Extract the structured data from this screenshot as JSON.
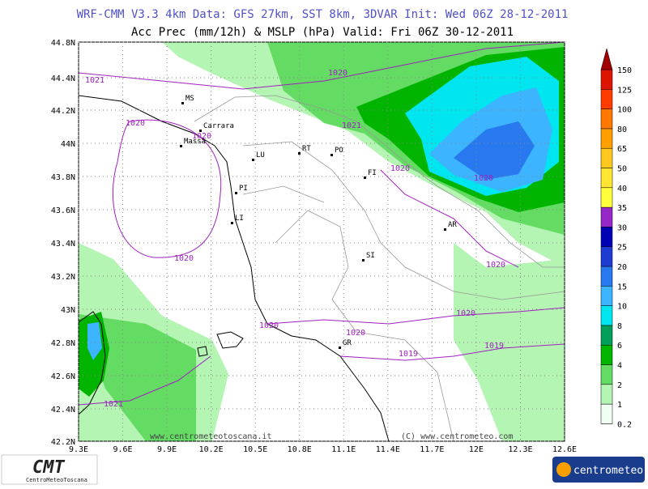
{
  "header": {
    "line1": "WRF-CMM V3.3 4km   Data: GFS 27km, SST 8km, 3DVAR   Init: Wed 06Z 28-12-2011",
    "line2": "Acc Prec (mm/12h) & MSLP (hPa)   Valid: Fri 06Z 30-12-2011"
  },
  "map": {
    "lat_labels": [
      "44.8N",
      "44.4N",
      "44.2N",
      "44N",
      "43.8N",
      "43.6N",
      "43.4N",
      "43.2N",
      "43N",
      "42.8N",
      "42.6N",
      "42.4N",
      "42.2N"
    ],
    "lon_labels": [
      "9.3E",
      "9.6E",
      "9.9E",
      "10.2E",
      "10.5E",
      "10.8E",
      "11.1E",
      "11.4E",
      "11.7E",
      "12E",
      "12.3E",
      "12.6E"
    ],
    "cities": [
      "MS",
      "Carrara",
      "Massa",
      "LU",
      "RT",
      "PO",
      "FI",
      "PI",
      "LI",
      "AR",
      "SI",
      "GR"
    ],
    "isobars": [
      "1021",
      "1020",
      "1021",
      "1020",
      "1020",
      "1020",
      "1020",
      "1020",
      "1020",
      "1020",
      "1020",
      "1019",
      "1019",
      "1021",
      "1020"
    ],
    "watermarks": [
      "www.centrometeotoscana.it",
      "(C) www.centrometeo.com"
    ]
  },
  "colorbar": {
    "levels": [
      0.2,
      1,
      2,
      4,
      6,
      8,
      10,
      15,
      20,
      25,
      30,
      35,
      40,
      50,
      65,
      80,
      100,
      125,
      150
    ],
    "colors": [
      "#f0fff0",
      "#b4f5b4",
      "#64dc64",
      "#00b400",
      "#00a05a",
      "#00e6f0",
      "#3cb4ff",
      "#2878f0",
      "#1e3cd2",
      "#0000b4",
      "#9628c8",
      "#ffff3c",
      "#ffe632",
      "#ffc81e",
      "#ffa000",
      "#ff7800",
      "#ff3c00",
      "#dc1400",
      "#a00000"
    ]
  },
  "logos": {
    "cmt": "CMT",
    "cmt_sub": "CentroMeteoToscana",
    "centrometeo": "centrometeo"
  }
}
